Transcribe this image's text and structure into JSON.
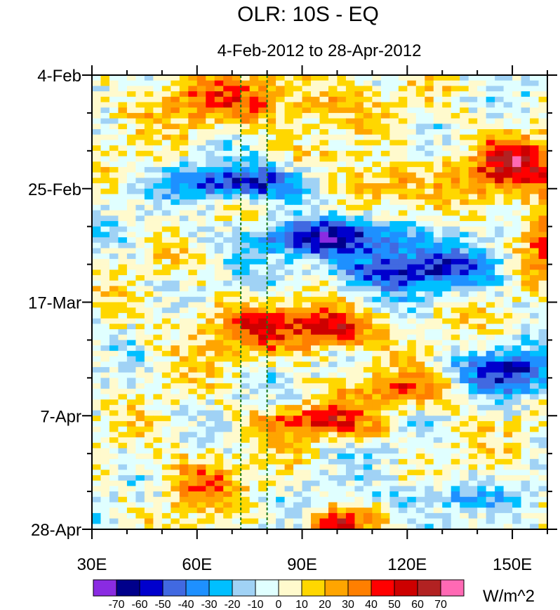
{
  "chart_data": {
    "type": "heatmap",
    "title": "OLR: 10S - EQ",
    "subtitle": "4-Feb-2012 to 28-Apr-2012",
    "units_label": "W/m^2",
    "x_ticks": [
      {
        "value": 30,
        "label": "30E"
      },
      {
        "value": 60,
        "label": "60E"
      },
      {
        "value": 90,
        "label": "90E"
      },
      {
        "value": 120,
        "label": "120E"
      },
      {
        "value": 150,
        "label": "150E"
      }
    ],
    "y_ticks": [
      {
        "day": 0,
        "label": "4-Feb"
      },
      {
        "day": 21,
        "label": "25-Feb"
      },
      {
        "day": 42,
        "label": "17-Mar"
      },
      {
        "day": 63,
        "label": "7-Apr"
      },
      {
        "day": 84,
        "label": "28-Apr"
      }
    ],
    "x_range": [
      30,
      160
    ],
    "y_range_days": [
      0,
      84
    ],
    "reference_longitudes": [
      72.5,
      80
    ],
    "colorbar_levels": [
      -70,
      -60,
      -50,
      -40,
      -30,
      -20,
      -10,
      0,
      10,
      20,
      30,
      40,
      50,
      60,
      70
    ],
    "colorbar_labels": [
      "-70",
      "-60",
      "-50",
      "-40",
      "-30",
      "-20",
      "-10",
      "0",
      "10",
      "20",
      "30",
      "40",
      "50",
      "60",
      "70"
    ],
    "colorbar_colors": [
      "#8a2be2",
      "#00008b",
      "#0000cd",
      "#4169e1",
      "#1e90ff",
      "#00bfff",
      "#a0d2f5",
      "#e0ffff",
      "#fffacd",
      "#ffd700",
      "#ffa500",
      "#ff7f00",
      "#ff0000",
      "#cd0000",
      "#b22222",
      "#ff69b4"
    ],
    "anomaly_features": [
      {
        "lon": 75,
        "day": 5,
        "value": 35,
        "lon_spread": 30,
        "day_spread": 5
      },
      {
        "lon": 150,
        "day": 17,
        "value": 55,
        "lon_spread": 15,
        "day_spread": 5
      },
      {
        "lon": 110,
        "day": 20,
        "value": 35,
        "lon_spread": 15,
        "day_spread": 4
      },
      {
        "lon": 75,
        "day": 20,
        "value": -60,
        "lon_spread": 22,
        "day_spread": 3
      },
      {
        "lon": 100,
        "day": 30,
        "value": -60,
        "lon_spread": 25,
        "day_spread": 3
      },
      {
        "lon": 120,
        "day": 36,
        "value": -55,
        "lon_spread": 25,
        "day_spread": 4
      },
      {
        "lon": 160,
        "day": 30,
        "value": 45,
        "lon_spread": 8,
        "day_spread": 7
      },
      {
        "lon": 80,
        "day": 47,
        "value": 35,
        "lon_spread": 25,
        "day_spread": 5
      },
      {
        "lon": 100,
        "day": 47,
        "value": 50,
        "lon_spread": 10,
        "day_spread": 3
      },
      {
        "lon": 150,
        "day": 55,
        "value": -55,
        "lon_spread": 15,
        "day_spread": 4
      },
      {
        "lon": 95,
        "day": 64,
        "value": 45,
        "lon_spread": 18,
        "day_spread": 3
      },
      {
        "lon": 120,
        "day": 58,
        "value": 40,
        "lon_spread": 15,
        "day_spread": 3
      },
      {
        "lon": 60,
        "day": 75,
        "value": 30,
        "lon_spread": 12,
        "day_spread": 5
      },
      {
        "lon": 100,
        "day": 83,
        "value": 50,
        "lon_spread": 8,
        "day_spread": 3
      },
      {
        "lon": 130,
        "day": 78,
        "value": -30,
        "lon_spread": 15,
        "day_spread": 3
      }
    ]
  }
}
